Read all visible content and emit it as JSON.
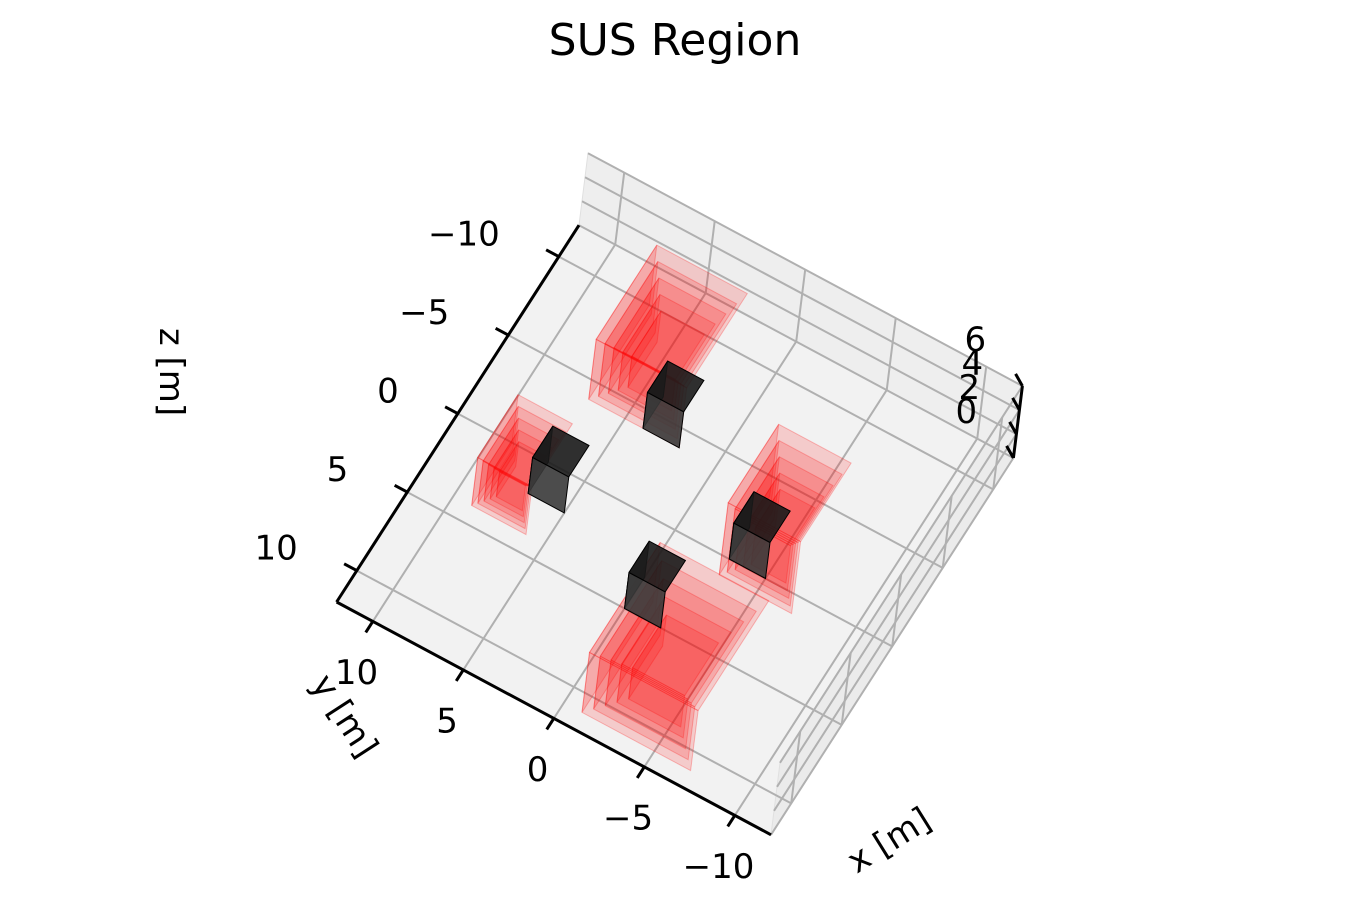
{
  "chart_data": {
    "type": "3d-polyhedra",
    "title": "SUS Region",
    "xlabel": "x [m]",
    "ylabel": "y [m]",
    "zlabel": "z [m]",
    "xlim": [
      -12,
      12
    ],
    "ylim": [
      -12,
      12
    ],
    "zlim": [
      0,
      6
    ],
    "x_ticks": [
      "−10",
      "−5",
      "0",
      "5",
      "10"
    ],
    "y_ticks": [
      "−10",
      "−5",
      "0",
      "5",
      "10"
    ],
    "z_ticks": [
      "0",
      "2",
      "4",
      "6"
    ],
    "grid": true,
    "colors": {
      "region": "#ff0000",
      "obstacle": "#1a1a1a",
      "pane": "#f2f2f2"
    },
    "obstacles": [
      {
        "name": "obstacle-1",
        "x": [
          2,
          4
        ],
        "y": [
          -6,
          -4
        ],
        "z": [
          0,
          3
        ]
      },
      {
        "name": "obstacle-2",
        "x": [
          -5,
          -3
        ],
        "y": [
          -2,
          0
        ],
        "z": [
          0,
          3
        ]
      },
      {
        "name": "obstacle-3",
        "x": [
          -2,
          0
        ],
        "y": [
          3,
          5
        ],
        "z": [
          0,
          3
        ]
      },
      {
        "name": "obstacle-4",
        "x": [
          5,
          7
        ],
        "y": [
          0,
          2
        ],
        "z": [
          0,
          3
        ]
      }
    ],
    "sus_regions": [
      {
        "name": "region-west",
        "x": [
          2,
          7
        ],
        "y": [
          -10,
          -4
        ],
        "z": [
          0,
          5
        ],
        "layers": 5
      },
      {
        "name": "region-north",
        "x": [
          -7,
          -3
        ],
        "y": [
          -4,
          1
        ],
        "z": [
          0,
          6
        ],
        "layers": 5
      },
      {
        "name": "region-east",
        "x": [
          -7,
          -1
        ],
        "y": [
          4,
          11
        ],
        "z": [
          0,
          5
        ],
        "layers": 5
      },
      {
        "name": "region-south",
        "x": [
          6,
          9
        ],
        "y": [
          0,
          4
        ],
        "z": [
          0,
          4
        ],
        "layers": 5
      }
    ]
  }
}
